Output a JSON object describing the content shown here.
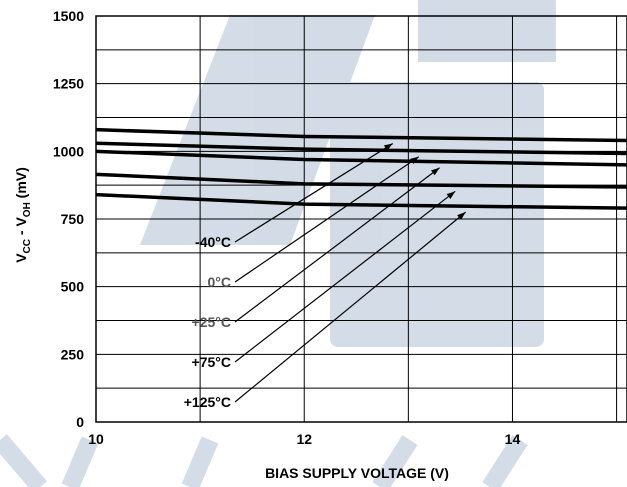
{
  "chart_data": {
    "type": "line",
    "xlabel": "BIAS SUPPLY VOLTAGE (V)",
    "ylabel": {
      "v": "V",
      "cc": "CC",
      "mid": " - V",
      "oh": "OH",
      "unit": " (mV)"
    },
    "xlim": [
      10,
      15.1
    ],
    "ylim": [
      0,
      1500
    ],
    "x_ticks": [
      10,
      12,
      14
    ],
    "y_ticks": [
      0,
      250,
      500,
      750,
      1000,
      1250,
      1500
    ],
    "grid": true,
    "series": [
      {
        "name": "-40°C",
        "color": "#000000",
        "x": [
          10,
          12,
          15.1
        ],
        "values": [
          1080,
          1055,
          1040
        ]
      },
      {
        "name": "0°C",
        "color": "#000000",
        "x": [
          10,
          12,
          15.1
        ],
        "values": [
          1030,
          1008,
          992
        ]
      },
      {
        "name": "+25°C",
        "color": "#000000",
        "x": [
          10,
          12,
          15.1
        ],
        "values": [
          1000,
          970,
          950
        ]
      },
      {
        "name": "+75°C",
        "color": "#000000",
        "x": [
          10,
          12,
          15.1
        ],
        "values": [
          915,
          880,
          868
        ]
      },
      {
        "name": "+125°C",
        "color": "#000000",
        "x": [
          10,
          12,
          15.1
        ],
        "values": [
          840,
          805,
          790
        ]
      }
    ]
  }
}
